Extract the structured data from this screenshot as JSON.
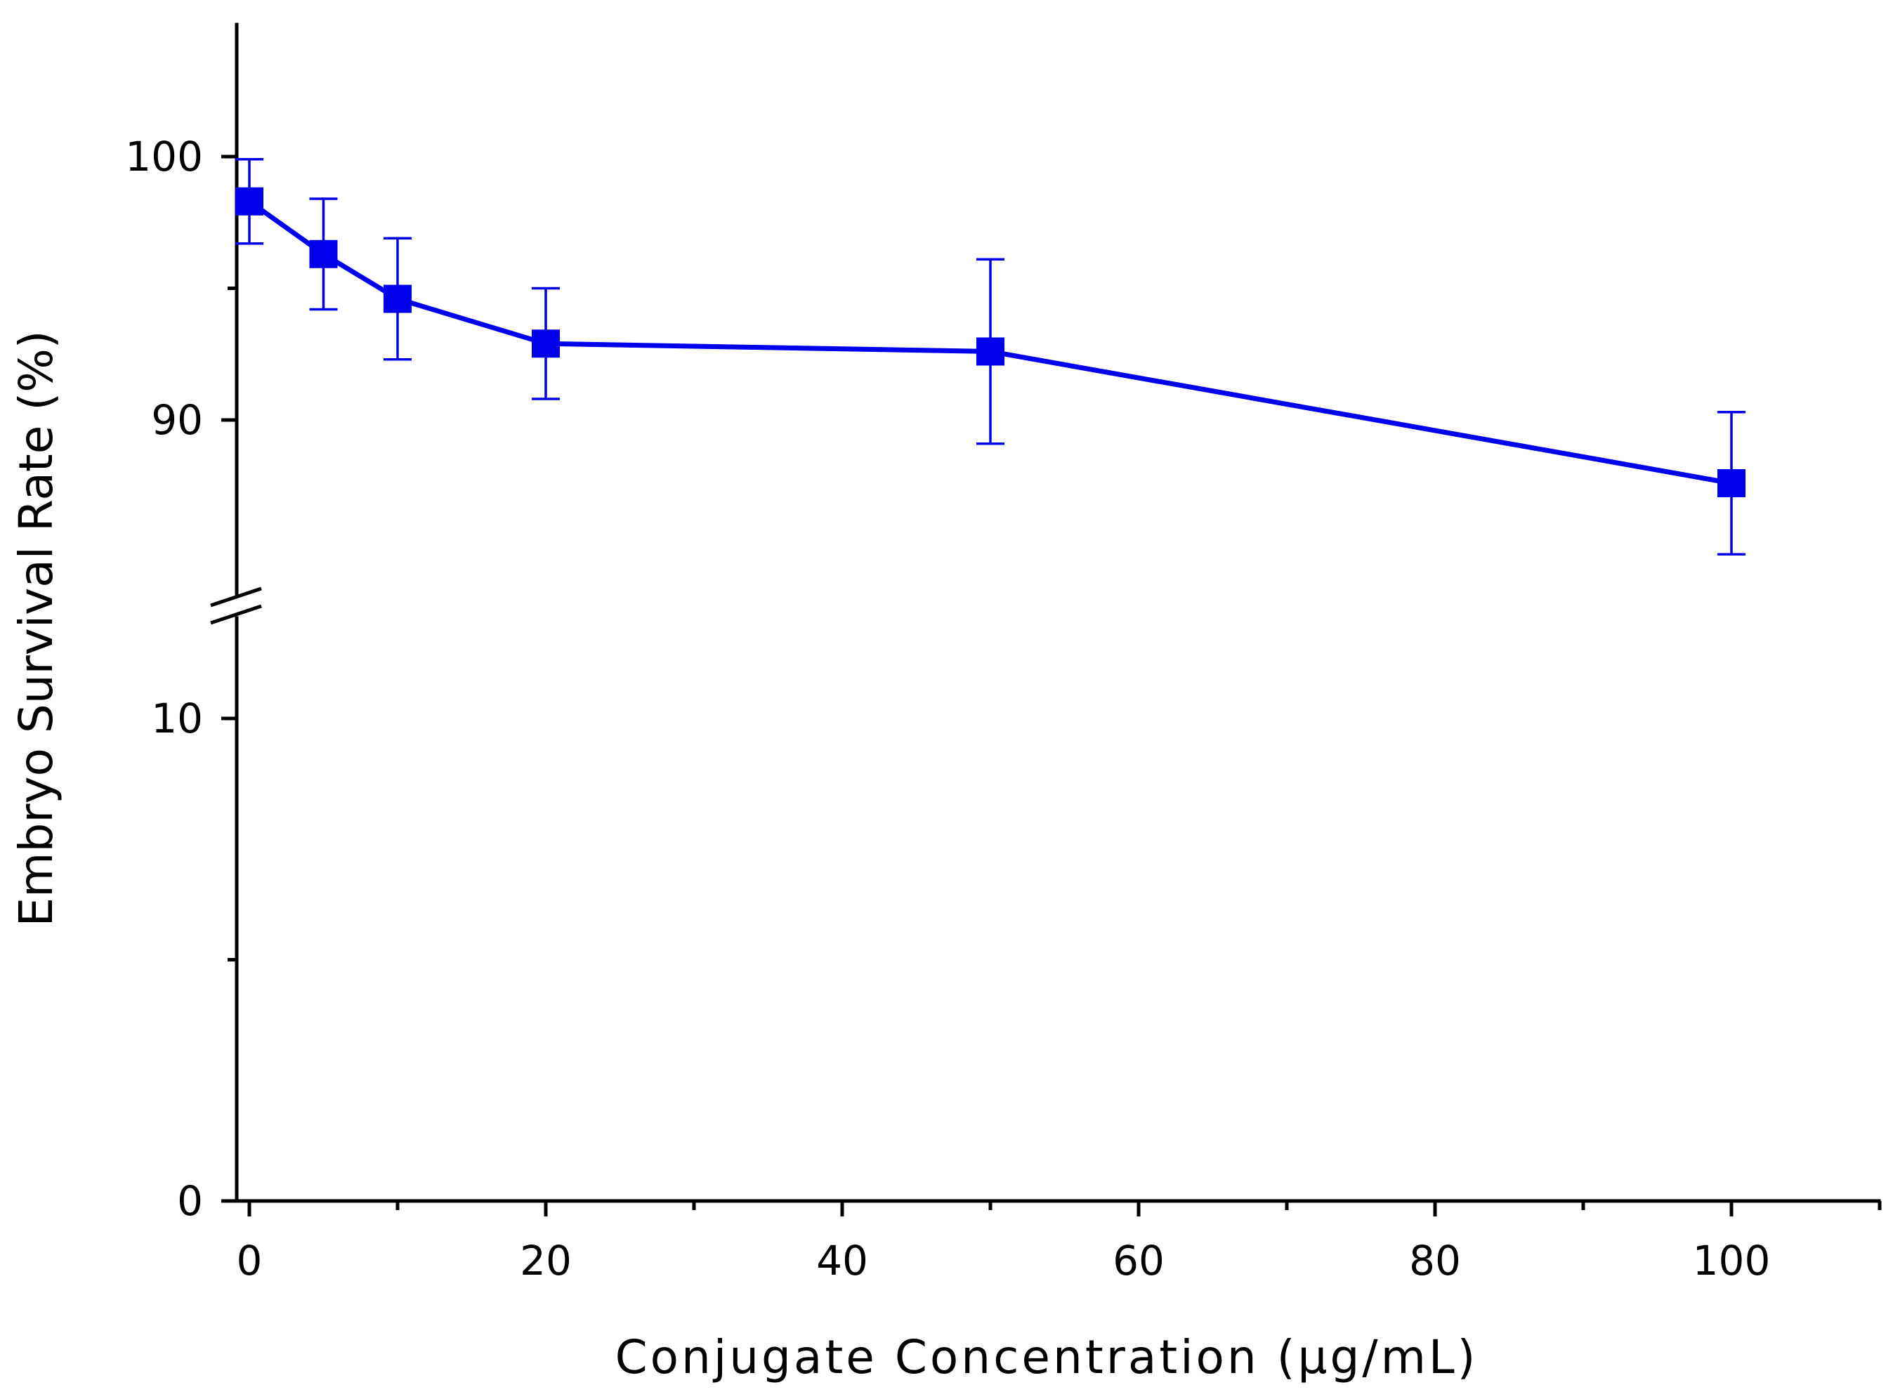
{
  "chart_data": {
    "type": "line",
    "title": "",
    "xlabel": "Conjugate Concentration (μg/mL)",
    "ylabel": "Embryo Survival Rate (%)",
    "xlim": [
      -2,
      110
    ],
    "x_ticks": [
      0,
      20,
      40,
      60,
      80,
      100
    ],
    "x_tick_labels": [
      "0",
      "20",
      "40",
      "60",
      "80",
      "100"
    ],
    "x_minor_ticks": [
      10,
      30,
      50,
      70,
      90,
      110
    ],
    "y_axis_break": true,
    "y_segments": [
      {
        "name": "lower",
        "ylim": [
          0,
          12
        ],
        "ticks": [
          0,
          10
        ],
        "tick_labels": [
          "0",
          "10"
        ],
        "minor_ticks": [
          5
        ]
      },
      {
        "name": "upper",
        "ylim": [
          83.5,
          105
        ],
        "ticks": [
          90,
          100
        ],
        "tick_labels": [
          "90",
          "100"
        ],
        "minor_ticks": [
          95
        ]
      }
    ],
    "grid": false,
    "series": [
      {
        "name": "Embryo Survival Rate",
        "color": "#0000ee",
        "marker": "square",
        "x": [
          0,
          5,
          10,
          20,
          50,
          100
        ],
        "values": [
          98.3,
          96.3,
          94.6,
          92.9,
          92.6,
          87.6
        ],
        "error": [
          1.6,
          2.1,
          2.3,
          2.1,
          3.5,
          2.7
        ]
      }
    ]
  }
}
